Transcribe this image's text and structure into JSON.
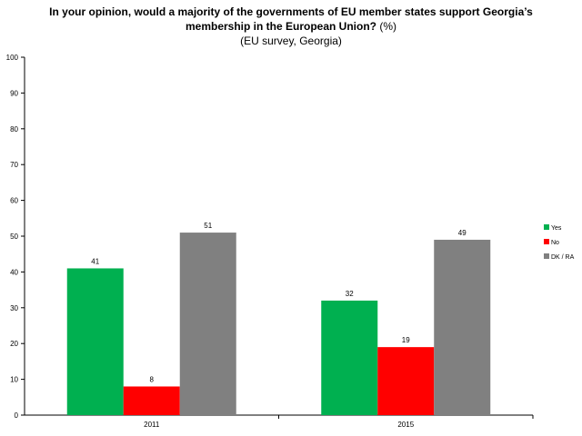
{
  "chart_data": {
    "type": "bar",
    "title_line1": "In your opinion, would a majority of the governments of EU member states support Georgia’s",
    "title_line2_bold": "membership in the European Union?",
    "title_line2_rest": " (%)",
    "subtitle": "(EU survey, Georgia)",
    "categories": [
      "2011",
      "2015"
    ],
    "series": [
      {
        "name": "Yes",
        "values": [
          41,
          32
        ],
        "color": "#00b050"
      },
      {
        "name": "No",
        "values": [
          8,
          19
        ],
        "color": "#ff0000"
      },
      {
        "name": "DK / RA",
        "values": [
          51,
          49
        ],
        "color": "#808080"
      }
    ],
    "ylim": [
      0,
      100
    ],
    "yticks": [
      "0",
      "10",
      "20",
      "30",
      "40",
      "50",
      "60",
      "70",
      "80",
      "90",
      "100"
    ],
    "legend_position": "right",
    "grid": false
  }
}
